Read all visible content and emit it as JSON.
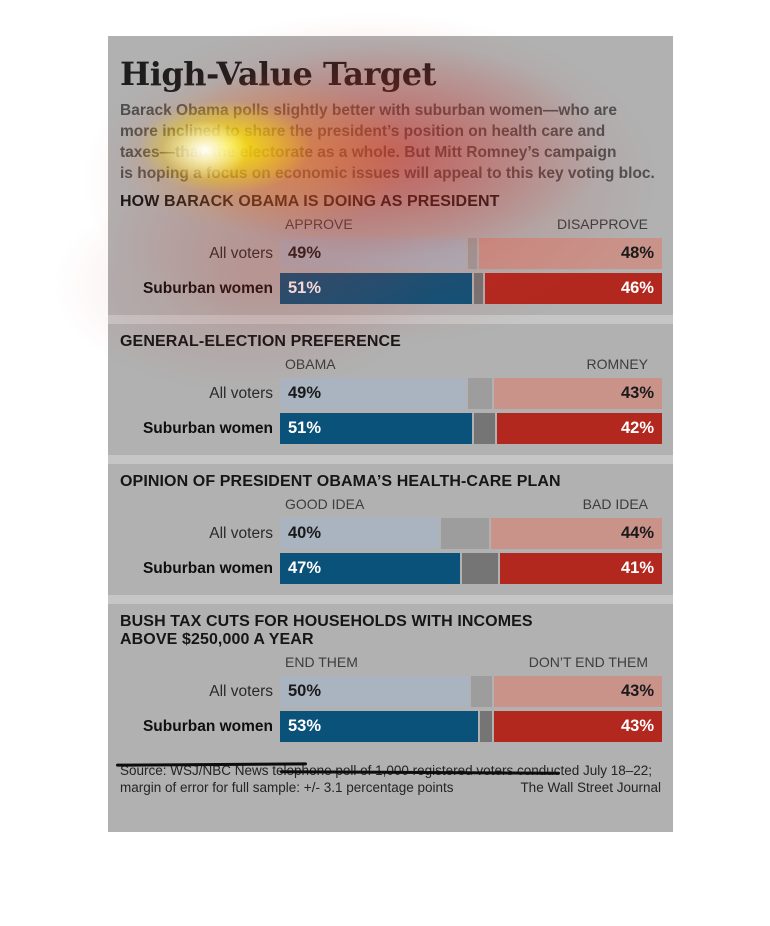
{
  "title": "High-Value Target",
  "intro_lines": [
    "Barack Obama polls slightly better with suburban women—who are",
    "more inclined to share the president’s position on health care and",
    "taxes—than the electorate as a whole. But Mitt Romney’s campaign",
    "is hoping a focus on economic issues will appeal to this key voting bloc."
  ],
  "sections": [
    {
      "heading": "HOW BARACK OBAMA IS DOING AS PRESIDENT",
      "heading_line2": "",
      "left_header": "APPROVE",
      "right_header": "DISAPPROVE",
      "rows": [
        {
          "label": "All voters",
          "left_pct": 49,
          "left_text": "49%",
          "mid_pct": 3,
          "right_pct": 48,
          "right_text": "48%"
        },
        {
          "label": "Suburban women",
          "left_pct": 51,
          "left_text": "51%",
          "mid_pct": 3,
          "right_pct": 46,
          "right_text": "46%"
        }
      ]
    },
    {
      "heading": "GENERAL-ELECTION PREFERENCE",
      "heading_line2": "",
      "left_header": "OBAMA",
      "right_header": "ROMNEY",
      "rows": [
        {
          "label": "All voters",
          "left_pct": 49,
          "left_text": "49%",
          "mid_pct": 8,
          "right_pct": 43,
          "right_text": "43%"
        },
        {
          "label": "Suburban women",
          "left_pct": 51,
          "left_text": "51%",
          "mid_pct": 7,
          "right_pct": 42,
          "right_text": "42%"
        }
      ]
    },
    {
      "heading": "OPINION OF PRESIDENT OBAMA’S HEALTH-CARE PLAN",
      "heading_line2": "",
      "left_header": "GOOD IDEA",
      "right_header": "BAD IDEA",
      "rows": [
        {
          "label": "All voters",
          "left_pct": 40,
          "left_text": "40%",
          "mid_pct": 16,
          "right_pct": 44,
          "right_text": "44%"
        },
        {
          "label": "Suburban women",
          "left_pct": 47,
          "left_text": "47%",
          "mid_pct": 12,
          "right_pct": 41,
          "right_text": "41%"
        }
      ]
    },
    {
      "heading": "BUSH TAX CUTS FOR HOUSEHOLDS WITH INCOMES",
      "heading_line2": "ABOVE $250,000 A YEAR",
      "left_header": "END THEM",
      "right_header": "DON’T END THEM",
      "rows": [
        {
          "label": "All voters",
          "left_pct": 50,
          "left_text": "50%",
          "mid_pct": 7,
          "right_pct": 43,
          "right_text": "43%"
        },
        {
          "label": "Suburban women",
          "left_pct": 53,
          "left_text": "53%",
          "mid_pct": 4,
          "right_pct": 43,
          "right_text": "43%"
        }
      ]
    }
  ],
  "footer": {
    "source_line1": "Source: WSJ/NBC News telephone poll of 1,000 registered voters conducted July 18–22;",
    "source_line2": "margin of error for full sample: +/- 3.1 percentage points",
    "credit": "The Wall Street Journal"
  },
  "colors": {
    "panel_bg": "#b1b1b1",
    "divider": "#c6c6c6",
    "all_left": "#a9b4c0",
    "all_gap": "#9d9d9d",
    "all_right": "#c9938a",
    "sub_left": "#0a527a",
    "sub_gap": "#757575",
    "sub_right": "#b2281f",
    "value_dark": "#1a1a1a",
    "value_light": "#ffffff"
  },
  "chart_data": [
    {
      "type": "bar",
      "variant": "horizontal-stacked",
      "title": "HOW BARACK OBAMA IS DOING AS PRESIDENT",
      "categories": [
        "All voters",
        "Suburban women"
      ],
      "series": [
        {
          "name": "APPROVE",
          "values": [
            49,
            51
          ]
        },
        {
          "name": "unlabeled remainder",
          "values": [
            3,
            3
          ]
        },
        {
          "name": "DISAPPROVE",
          "values": [
            48,
            46
          ]
        }
      ],
      "xlim": [
        0,
        100
      ],
      "unit": "%",
      "legend_position": "column-headers-above-bars"
    },
    {
      "type": "bar",
      "variant": "horizontal-stacked",
      "title": "GENERAL-ELECTION PREFERENCE",
      "categories": [
        "All voters",
        "Suburban women"
      ],
      "series": [
        {
          "name": "OBAMA",
          "values": [
            49,
            51
          ]
        },
        {
          "name": "unlabeled remainder",
          "values": [
            8,
            7
          ]
        },
        {
          "name": "ROMNEY",
          "values": [
            43,
            42
          ]
        }
      ],
      "xlim": [
        0,
        100
      ],
      "unit": "%",
      "legend_position": "column-headers-above-bars"
    },
    {
      "type": "bar",
      "variant": "horizontal-stacked",
      "title": "OPINION OF PRESIDENT OBAMA’S HEALTH-CARE PLAN",
      "categories": [
        "All voters",
        "Suburban women"
      ],
      "series": [
        {
          "name": "GOOD IDEA",
          "values": [
            40,
            47
          ]
        },
        {
          "name": "unlabeled remainder",
          "values": [
            16,
            12
          ]
        },
        {
          "name": "BAD IDEA",
          "values": [
            44,
            41
          ]
        }
      ],
      "xlim": [
        0,
        100
      ],
      "unit": "%",
      "legend_position": "column-headers-above-bars"
    },
    {
      "type": "bar",
      "variant": "horizontal-stacked",
      "title": "BUSH TAX CUTS FOR HOUSEHOLDS WITH INCOMES ABOVE $250,000 A YEAR",
      "categories": [
        "All voters",
        "Suburban women"
      ],
      "series": [
        {
          "name": "END THEM",
          "values": [
            50,
            53
          ]
        },
        {
          "name": "unlabeled remainder",
          "values": [
            7,
            4
          ]
        },
        {
          "name": "DON’T END THEM",
          "values": [
            43,
            43
          ]
        }
      ],
      "xlim": [
        0,
        100
      ],
      "unit": "%",
      "legend_position": "column-headers-above-bars"
    }
  ]
}
